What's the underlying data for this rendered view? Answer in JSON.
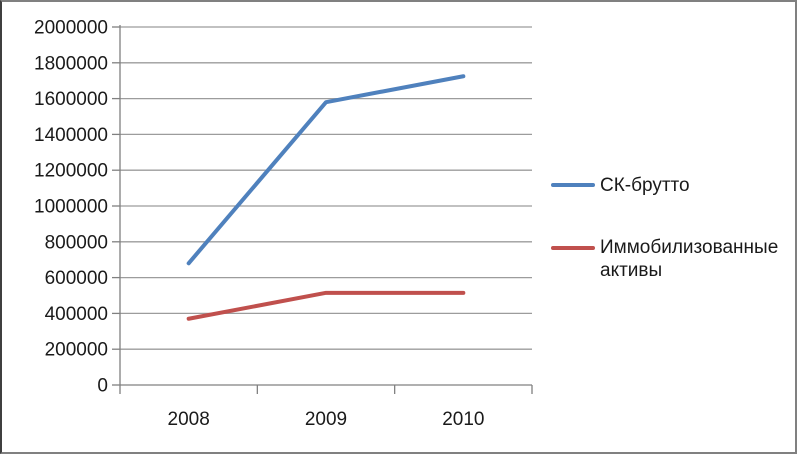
{
  "chart_data": {
    "type": "line",
    "categories": [
      "2008",
      "2009",
      "2010"
    ],
    "series": [
      {
        "name": "СК-брутто",
        "values": [
          680000,
          1580000,
          1725000
        ],
        "color": "#4F81BD"
      },
      {
        "name": "Иммобилизованные активы",
        "values": [
          370000,
          515000,
          515000
        ],
        "color": "#C0504D"
      }
    ],
    "title": "",
    "xlabel": "",
    "ylabel": "",
    "ylim": [
      0,
      2000000
    ],
    "ytick_step": 200000,
    "ytick_labels": [
      "0",
      "200000",
      "400000",
      "600000",
      "800000",
      "1000000",
      "1200000",
      "1400000",
      "1600000",
      "1800000",
      "2000000"
    ],
    "grid": "horizontal-only",
    "legend_position": "right",
    "axis_color": "#808080",
    "gridline_color": "#9c9c9c",
    "text_color": "#1a1a1a",
    "background_color": "#ffffff",
    "frame_border_color": "#808080"
  },
  "legend": {
    "items": [
      {
        "label": "СК-брутто"
      },
      {
        "label": "Иммобилизованные активы"
      }
    ]
  }
}
